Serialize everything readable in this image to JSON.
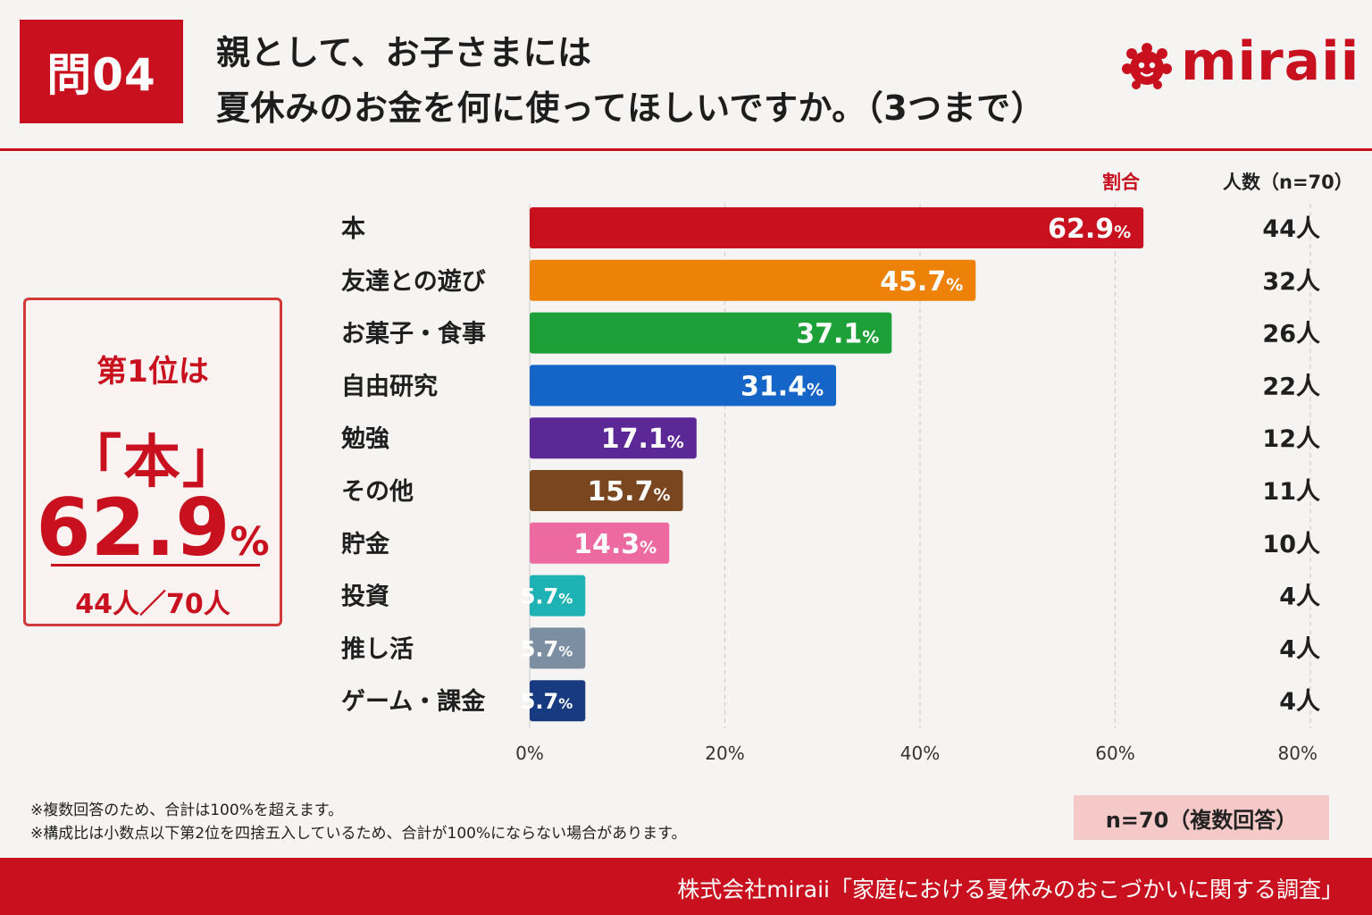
{
  "header": {
    "question_badge": "問04",
    "title_line1": "親として、お子さまには",
    "title_line2": "夏休みのお金を何に使ってほしいですか。（3つまで）",
    "logo_text": "miraii",
    "brand_color": "#c8101e"
  },
  "columns": {
    "rate_header": "割合",
    "count_header": "人数（n=70）"
  },
  "highlight": {
    "rank_heading": "第1位は",
    "item": "「本」",
    "percent": "62.9",
    "percent_unit": "%",
    "count": "44人／70人"
  },
  "chart_data": {
    "type": "bar",
    "orientation": "horizontal",
    "categories": [
      "本",
      "友達との遊び",
      "お菓子・食事",
      "自由研究",
      "勉強",
      "その他",
      "貯金",
      "投資",
      "推し活",
      "ゲーム・課金"
    ],
    "values": [
      62.9,
      45.7,
      37.1,
      31.4,
      17.1,
      15.7,
      14.3,
      5.7,
      5.7,
      5.7
    ],
    "counts": [
      "44人",
      "32人",
      "26人",
      "22人",
      "12人",
      "11人",
      "10人",
      "4人",
      "4人",
      "4人"
    ],
    "colors": [
      "#c8101e",
      "#ee8209",
      "#1ea038",
      "#1565c8",
      "#5c2896",
      "#7a4620",
      "#ec6aa0",
      "#1fb2b4",
      "#7c8ea2",
      "#173a80"
    ],
    "xlim": [
      0,
      80
    ],
    "xticks": [
      "0%",
      "20%",
      "40%",
      "60%",
      "80%"
    ],
    "value_unit": "%",
    "grid": "vertical dashed"
  },
  "notes": {
    "line1": "※複数回答のため、合計は100%を超えます。",
    "line2": "※構成比は小数点以下第2位を四捨五入しているため、合計が100%にならない場合があります。"
  },
  "sample_badge": "n=70（複数回答）",
  "footer": {
    "source": "株式会社miraii「家庭における夏休みのおこづかいに関する調査」"
  }
}
